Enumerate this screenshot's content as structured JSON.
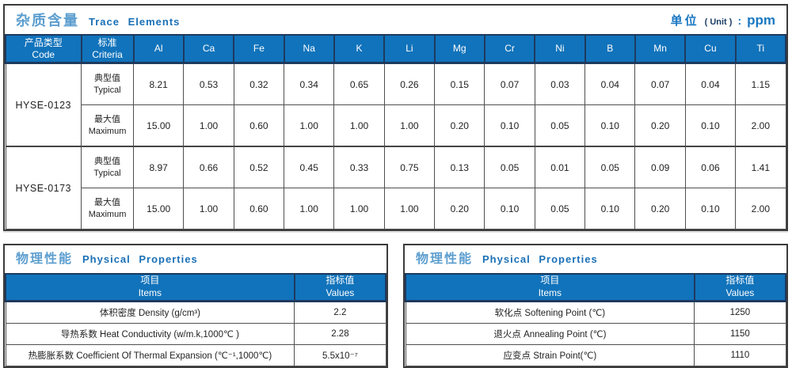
{
  "colors": {
    "header_blue": "#1173bb",
    "divider_navy": "#1e3a5f",
    "panel_border": "#3b3b3b",
    "title_cjk_blue": "#5c9ecf",
    "title_en_blue": "#1a70b6"
  },
  "trace_table": {
    "title": {
      "cjk": "杂质含量",
      "en": "Trace Elements"
    },
    "unit": {
      "label": "单位",
      "paren": "( Unit )",
      "colon": ":",
      "value": "ppm"
    },
    "col_product": {
      "cjk": "产品类型",
      "en": "Code"
    },
    "col_criteria": {
      "cjk": "标准",
      "en": "Criteria"
    },
    "elements": [
      "Al",
      "Ca",
      "Fe",
      "Na",
      "K",
      "Li",
      "Mg",
      "Cr",
      "Ni",
      "B",
      "Mn",
      "Cu",
      "Ti"
    ],
    "row_labels": {
      "typical": {
        "cjk": "典型值",
        "en": "Typical"
      },
      "maximum": {
        "cjk": "最大值",
        "en": "Maximum"
      }
    },
    "products": [
      {
        "code": "HYSE-0123",
        "typical": [
          "8.21",
          "0.53",
          "0.32",
          "0.34",
          "0.65",
          "0.26",
          "0.15",
          "0.07",
          "0.03",
          "0.04",
          "0.07",
          "0.04",
          "1.15"
        ],
        "maximum": [
          "15.00",
          "1.00",
          "0.60",
          "1.00",
          "1.00",
          "1.00",
          "0.20",
          "0.10",
          "0.05",
          "0.10",
          "0.20",
          "0.10",
          "2.00"
        ]
      },
      {
        "code": "HYSE-0173",
        "typical": [
          "8.97",
          "0.66",
          "0.52",
          "0.45",
          "0.33",
          "0.75",
          "0.13",
          "0.05",
          "0.01",
          "0.05",
          "0.09",
          "0.06",
          "1.41"
        ],
        "maximum": [
          "15.00",
          "1.00",
          "0.60",
          "1.00",
          "1.00",
          "1.00",
          "0.20",
          "0.10",
          "0.05",
          "0.10",
          "0.20",
          "0.10",
          "2.00"
        ]
      }
    ]
  },
  "physical_left": {
    "title": {
      "cjk": "物理性能",
      "en": "Physical Properties"
    },
    "headers": {
      "items_cjk": "项目",
      "items_en": "Items",
      "values_cjk": "指标值",
      "values_en": "Values"
    },
    "rows": [
      {
        "item": "体积密度 Density (g/cm³)",
        "value": "2.2"
      },
      {
        "item": "导热系数 Heat Conductivity (w/m.k,1000℃ )",
        "value": "2.28"
      },
      {
        "item": "热膨胀系数 Coefficient Of Thermal Expansion (℃⁻¹,1000℃)",
        "value": "5.5x10⁻⁷"
      }
    ]
  },
  "physical_right": {
    "title": {
      "cjk": "物理性能",
      "en": "Physical Properties"
    },
    "headers": {
      "items_cjk": "项目",
      "items_en": "Items",
      "values_cjk": "指标值",
      "values_en": "Values"
    },
    "rows": [
      {
        "item": "软化点 Softening Point (℃)",
        "value": "1250"
      },
      {
        "item": "退火点 Annealing Point (℃)",
        "value": "1150"
      },
      {
        "item": "应变点 Strain Point(℃)",
        "value": "1110"
      }
    ]
  }
}
